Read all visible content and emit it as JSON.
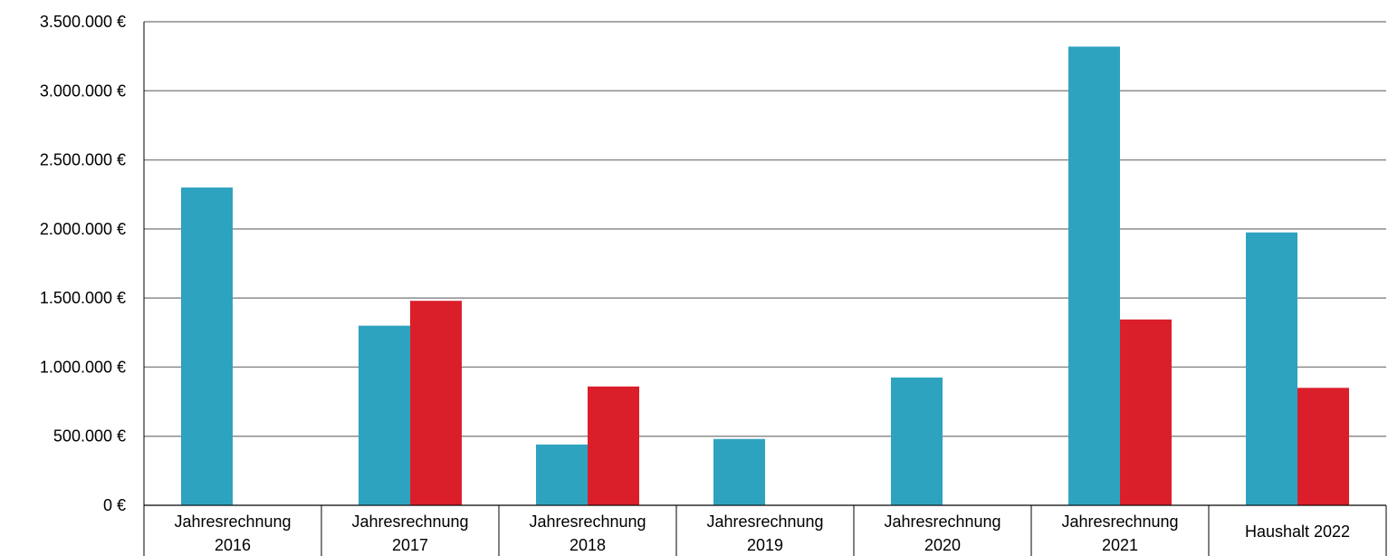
{
  "chart_data": {
    "type": "bar",
    "title": "",
    "xlabel": "",
    "ylabel": "",
    "ylim": [
      0,
      3500000
    ],
    "y_ticks": [
      0,
      500000,
      1000000,
      1500000,
      2000000,
      2500000,
      3000000,
      3500000
    ],
    "y_tick_labels": [
      "0 €",
      "500.000 €",
      "1.000.000 €",
      "1.500.000 €",
      "2.000.000 €",
      "2.500.000 €",
      "3.000.000 €",
      "3.500.000 €"
    ],
    "grid": true,
    "legend": "none",
    "categories": [
      [
        "Jahresrechnung",
        "2016"
      ],
      [
        "Jahresrechnung",
        "2017"
      ],
      [
        "Jahresrechnung",
        "2018"
      ],
      [
        "Jahresrechnung",
        "2019"
      ],
      [
        "Jahresrechnung",
        "2020"
      ],
      [
        "Jahresrechnung",
        "2021"
      ],
      [
        "Haushalt 2022"
      ]
    ],
    "series": [
      {
        "color": "#2EA3C0",
        "values": [
          2300000,
          1300000,
          440000,
          480000,
          925000,
          3320000,
          1975000
        ]
      },
      {
        "color": "#DA1F2B",
        "values": [
          0,
          1480000,
          860000,
          0,
          0,
          1345000,
          850000
        ]
      }
    ]
  }
}
